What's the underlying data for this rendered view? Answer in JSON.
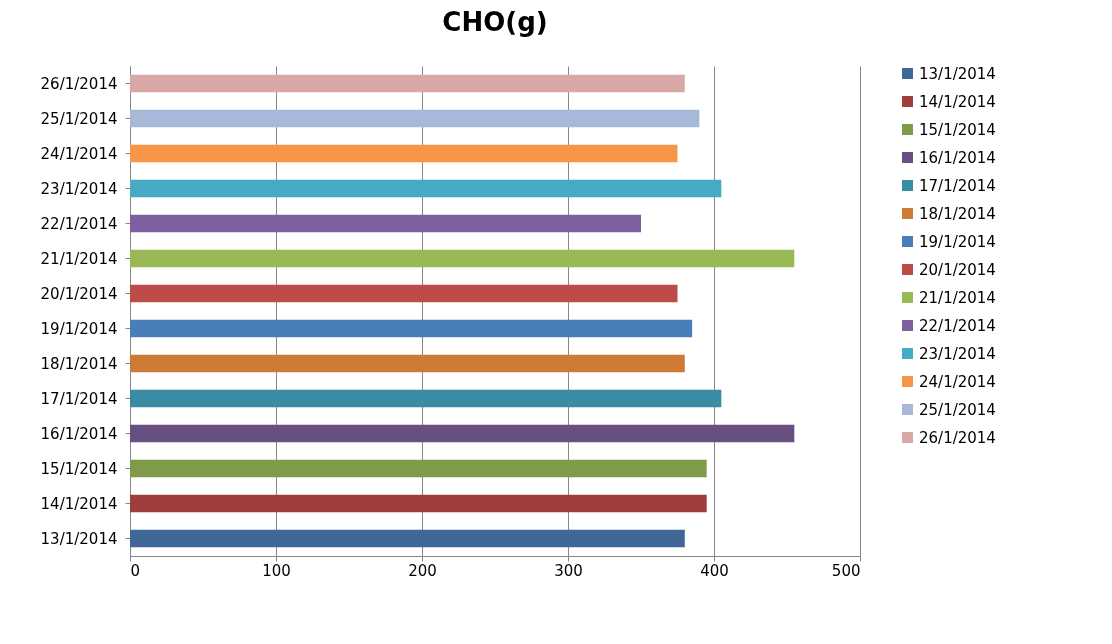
{
  "chart_data": {
    "type": "bar",
    "orientation": "horizontal",
    "title": "CHO(g)",
    "categories": [
      "26/1/2014",
      "25/1/2014",
      "24/1/2014",
      "23/1/2014",
      "22/1/2014",
      "21/1/2014",
      "20/1/2014",
      "19/1/2014",
      "18/1/2014",
      "17/1/2014",
      "16/1/2014",
      "15/1/2014",
      "14/1/2014",
      "13/1/2014"
    ],
    "series": [
      {
        "name": "13/1/2014",
        "color": "#3f6797",
        "values": [
          null,
          null,
          null,
          null,
          null,
          null,
          null,
          null,
          null,
          null,
          null,
          null,
          null,
          380
        ]
      },
      {
        "name": "14/1/2014",
        "color": "#9e3e3b",
        "values": [
          null,
          null,
          null,
          null,
          null,
          null,
          null,
          null,
          null,
          null,
          null,
          null,
          395,
          null
        ]
      },
      {
        "name": "15/1/2014",
        "color": "#7f9a48",
        "values": [
          null,
          null,
          null,
          null,
          null,
          null,
          null,
          null,
          null,
          null,
          null,
          395,
          null,
          null
        ]
      },
      {
        "name": "16/1/2014",
        "color": "#684f82",
        "values": [
          null,
          null,
          null,
          null,
          null,
          null,
          null,
          null,
          null,
          null,
          455,
          null,
          null,
          null
        ]
      },
      {
        "name": "17/1/2014",
        "color": "#3a8ca3",
        "values": [
          null,
          null,
          null,
          null,
          null,
          null,
          null,
          null,
          null,
          405,
          null,
          null,
          null,
          null
        ]
      },
      {
        "name": "18/1/2014",
        "color": "#cc7a34",
        "values": [
          null,
          null,
          null,
          null,
          null,
          null,
          null,
          null,
          380,
          null,
          null,
          null,
          null,
          null
        ]
      },
      {
        "name": "19/1/2014",
        "color": "#4a7ebb",
        "values": [
          null,
          null,
          null,
          null,
          null,
          null,
          null,
          385,
          null,
          null,
          null,
          null,
          null,
          null
        ]
      },
      {
        "name": "20/1/2014",
        "color": "#be4b48",
        "values": [
          null,
          null,
          null,
          null,
          null,
          null,
          375,
          null,
          null,
          null,
          null,
          null,
          null,
          null
        ]
      },
      {
        "name": "21/1/2014",
        "color": "#98b954",
        "values": [
          null,
          null,
          null,
          null,
          null,
          455,
          null,
          null,
          null,
          null,
          null,
          null,
          null,
          null
        ]
      },
      {
        "name": "22/1/2014",
        "color": "#7d60a0",
        "values": [
          null,
          null,
          null,
          null,
          350,
          null,
          null,
          null,
          null,
          null,
          null,
          null,
          null,
          null
        ]
      },
      {
        "name": "23/1/2014",
        "color": "#46aac5",
        "values": [
          null,
          null,
          null,
          405,
          null,
          null,
          null,
          null,
          null,
          null,
          null,
          null,
          null,
          null
        ]
      },
      {
        "name": "24/1/2014",
        "color": "#f79646",
        "values": [
          null,
          null,
          375,
          null,
          null,
          null,
          null,
          null,
          null,
          null,
          null,
          null,
          null,
          null
        ]
      },
      {
        "name": "25/1/2014",
        "color": "#a7b8d9",
        "values": [
          null,
          390,
          null,
          null,
          null,
          null,
          null,
          null,
          null,
          null,
          null,
          null,
          null,
          null
        ]
      },
      {
        "name": "26/1/2014",
        "color": "#d9a7a6",
        "values": [
          380,
          null,
          null,
          null,
          null,
          null,
          null,
          null,
          null,
          null,
          null,
          null,
          null,
          null
        ]
      }
    ],
    "xlim": [
      0,
      500
    ],
    "xticks": [
      0,
      100,
      200,
      300,
      400,
      500
    ],
    "grid": "x",
    "legend": "right"
  }
}
